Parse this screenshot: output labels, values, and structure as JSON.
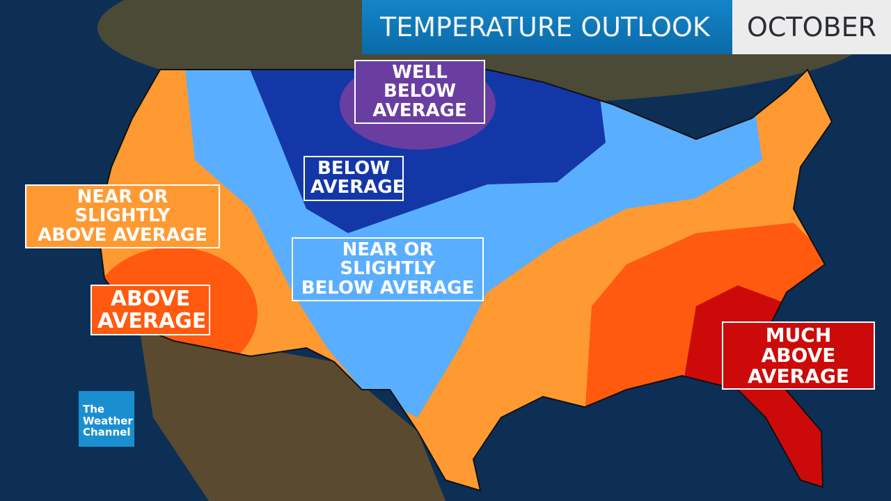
{
  "title": "TEMPERATURE OUTLOOK",
  "month": "OCTOBER",
  "logo": {
    "line1": "The",
    "line2": "Weather",
    "line3": "Channel"
  },
  "colors": {
    "ocean": "#0d2f55",
    "land": "#5a4a30",
    "much_above": "#cc0a0a",
    "above": "#ff5a0f",
    "near_above": "#ff9a33",
    "near_below": "#5aaeff",
    "below": "#1437a8",
    "well_below": "#6a3ea0",
    "title_blue": "#0f7abb"
  },
  "labels": {
    "well_below": [
      "WELL BELOW",
      "AVERAGE"
    ],
    "below": [
      "BELOW",
      "AVERAGE"
    ],
    "near_above": [
      "NEAR OR SLIGHTLY",
      "ABOVE AVERAGE"
    ],
    "near_below": [
      "NEAR OR SLIGHTLY",
      "BELOW AVERAGE"
    ],
    "above": [
      "ABOVE",
      "AVERAGE"
    ],
    "much_above": [
      "MUCH ABOVE",
      "AVERAGE"
    ]
  }
}
